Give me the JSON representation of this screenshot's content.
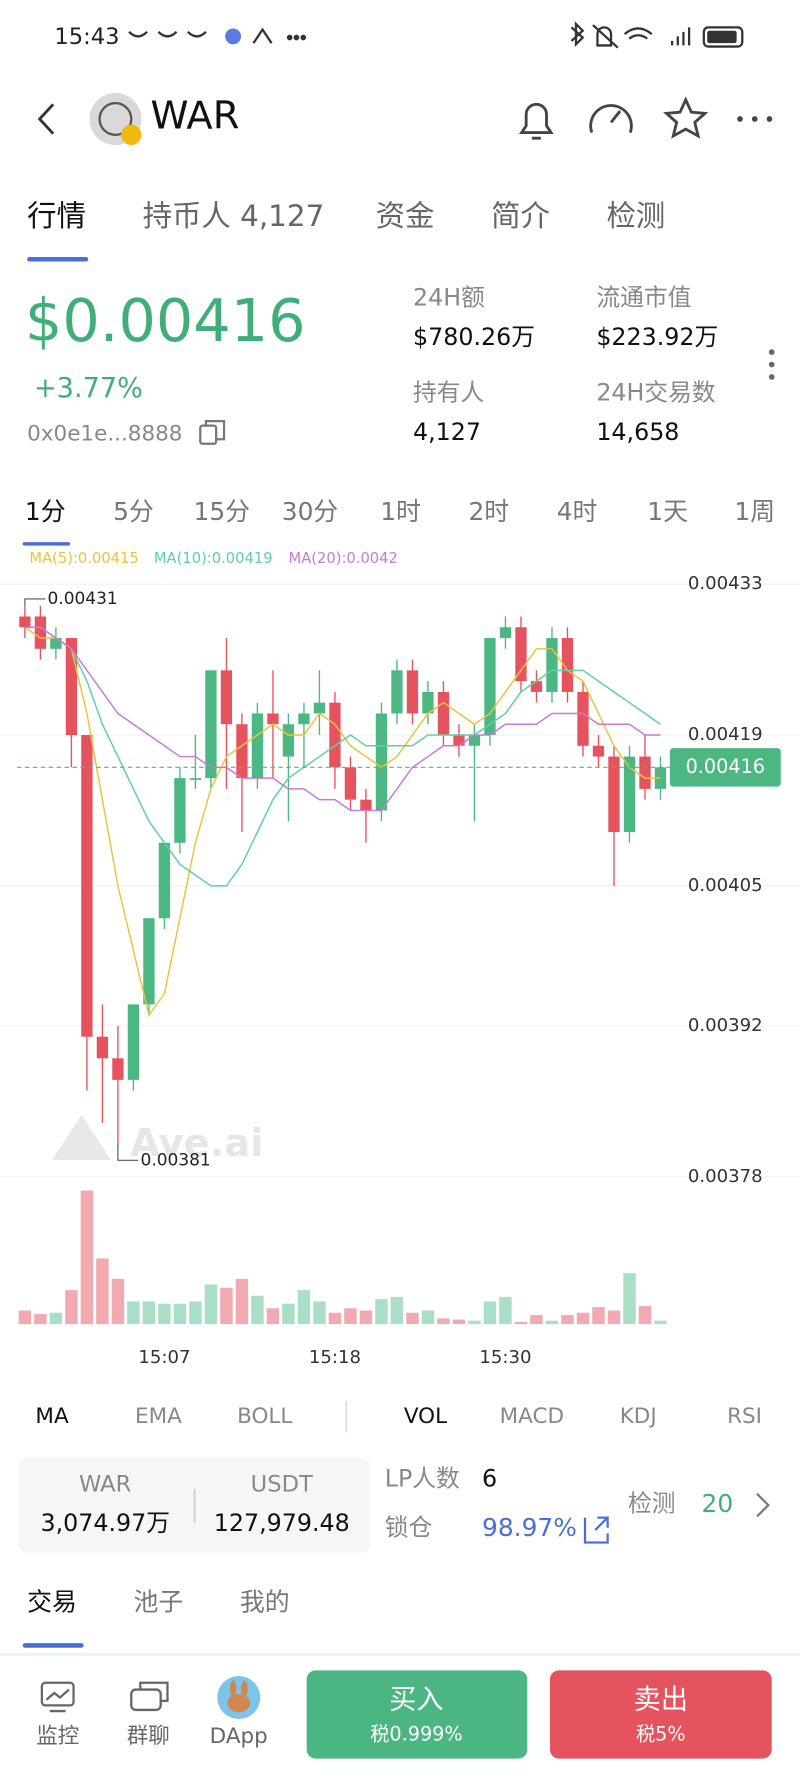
{
  "status_bar": {
    "time": "15:43"
  },
  "header": {
    "title": "WAR"
  },
  "tabs": [
    "行情",
    "持币人 4,127",
    "资金",
    "简介",
    "检测"
  ],
  "price": {
    "value": "$0.00416",
    "change": "+3.77%",
    "address": "0x0e1e...8888"
  },
  "stats": [
    {
      "label": "24H额",
      "value": "$780.26万"
    },
    {
      "label": "流通市值",
      "value": "$223.92万"
    },
    {
      "label": "持有人",
      "value": "4,127"
    },
    {
      "label": "24H交易数",
      "value": "14,658"
    }
  ],
  "intervals": [
    "1分",
    "5分",
    "15分",
    "30分",
    "1时",
    "2时",
    "4时",
    "1天",
    "1周"
  ],
  "chart_data": {
    "type": "candlestick",
    "categories": [
      null,
      null,
      null,
      null,
      null,
      null,
      null,
      null,
      null,
      "15:07",
      null,
      null,
      null,
      null,
      null,
      null,
      null,
      null,
      null,
      null,
      "15:18",
      null,
      null,
      null,
      null,
      null,
      null,
      null,
      null,
      null,
      null,
      "15:30",
      null,
      null,
      null,
      null,
      null,
      null,
      null,
      null,
      null,
      null
    ],
    "open": [
      0.0043,
      0.0043,
      0.00427,
      0.00428,
      0.00419,
      0.00391,
      0.00389,
      0.00387,
      0.00394,
      0.00402,
      0.00409,
      0.00415,
      0.00415,
      0.00425,
      0.0042,
      0.00415,
      0.00421,
      0.00417,
      0.0042,
      0.00421,
      0.00422,
      0.00416,
      0.00413,
      0.00412,
      0.00421,
      0.00425,
      0.00421,
      0.00423,
      0.00419,
      0.00418,
      0.00419,
      0.00428,
      0.00429,
      0.00424,
      0.00423,
      0.00428,
      0.00423,
      0.00418,
      0.00417,
      0.0041,
      0.00417,
      0.00414
    ],
    "high": [
      0.00431,
      0.00431,
      0.00429,
      0.00428,
      0.00419,
      0.00394,
      0.00392,
      0.00394,
      0.00402,
      0.00409,
      0.00416,
      0.00419,
      0.00425,
      0.00428,
      0.00421,
      0.00422,
      0.00425,
      0.00421,
      0.00422,
      0.00425,
      0.00423,
      0.00417,
      0.00414,
      0.00422,
      0.00426,
      0.00426,
      0.00424,
      0.00424,
      0.0042,
      0.0042,
      0.00428,
      0.0043,
      0.0043,
      0.00425,
      0.00429,
      0.00429,
      0.00424,
      0.00419,
      0.00418,
      0.00418,
      0.00419,
      0.00417
    ],
    "low": [
      0.00428,
      0.00426,
      0.00426,
      0.00416,
      0.00386,
      0.00383,
      0.00381,
      0.00386,
      0.00393,
      0.00401,
      0.00408,
      0.00414,
      0.00414,
      0.00414,
      0.0041,
      0.00414,
      0.00415,
      0.00411,
      0.00416,
      0.00419,
      0.00414,
      0.00412,
      0.00409,
      0.00411,
      0.0042,
      0.0042,
      0.0042,
      0.00418,
      0.00417,
      0.00411,
      0.00418,
      0.00427,
      0.00423,
      0.00422,
      0.00422,
      0.00422,
      0.00417,
      0.00416,
      0.00405,
      0.00409,
      0.00413,
      0.00413
    ],
    "close": [
      0.00429,
      0.00427,
      0.00428,
      0.00419,
      0.00391,
      0.00389,
      0.00387,
      0.00394,
      0.00402,
      0.00409,
      0.00415,
      0.00415,
      0.00425,
      0.0042,
      0.00415,
      0.00421,
      0.0042,
      0.0042,
      0.00421,
      0.00422,
      0.00416,
      0.00413,
      0.00412,
      0.00421,
      0.00425,
      0.00421,
      0.00423,
      0.00419,
      0.00418,
      0.00419,
      0.00428,
      0.00429,
      0.00424,
      0.00423,
      0.00428,
      0.00423,
      0.00418,
      0.00417,
      0.0041,
      0.00417,
      0.00414,
      0.00416
    ],
    "volume": [
      12,
      9,
      10,
      30,
      118,
      58,
      40,
      20,
      20,
      18,
      18,
      20,
      35,
      32,
      40,
      25,
      14,
      18,
      30,
      20,
      10,
      14,
      12,
      22,
      24,
      10,
      12,
      5,
      4,
      3,
      20,
      24,
      2,
      8,
      3,
      8,
      10,
      15,
      12,
      45,
      16,
      3
    ],
    "series": [
      {
        "name": "MA(5):0.00415",
        "color": "#e8c43c",
        "values": [
          0.00429,
          0.00428,
          0.00428,
          0.00427,
          0.00421,
          0.00413,
          0.00405,
          0.00399,
          0.00393,
          0.00395,
          0.00402,
          0.00409,
          0.00414,
          0.00417,
          0.00418,
          0.00419,
          0.0042,
          0.00419,
          0.00419,
          0.00421,
          0.0042,
          0.00418,
          0.00417,
          0.00416,
          0.00417,
          0.00419,
          0.00421,
          0.00422,
          0.00421,
          0.0042,
          0.00421,
          0.00423,
          0.00425,
          0.00427,
          0.00427,
          0.00425,
          0.00424,
          0.00421,
          0.00418,
          0.00416,
          0.00415,
          0.00415
        ]
      },
      {
        "name": "MA(10):0.00419",
        "color": "#5fcfa6",
        "values": [
          0.00429,
          0.00429,
          0.00428,
          0.00427,
          0.00424,
          0.0042,
          0.00417,
          0.00414,
          0.00411,
          0.00409,
          0.00407,
          0.00406,
          0.00405,
          0.00405,
          0.00407,
          0.0041,
          0.00413,
          0.00415,
          0.00416,
          0.00417,
          0.00418,
          0.00419,
          0.00418,
          0.00418,
          0.00418,
          0.00418,
          0.00419,
          0.00419,
          0.00419,
          0.00419,
          0.0042,
          0.00421,
          0.00423,
          0.00424,
          0.00425,
          0.00425,
          0.00425,
          0.00424,
          0.00423,
          0.00422,
          0.00421,
          0.0042
        ]
      },
      {
        "name": "MA(20):0.0042",
        "color": "#c77ad6",
        "values": [
          0.00429,
          0.00429,
          0.00428,
          0.00427,
          0.00425,
          0.00423,
          0.00421,
          0.0042,
          0.00419,
          0.00418,
          0.00417,
          0.00417,
          0.00416,
          0.00416,
          0.00415,
          0.00415,
          0.00415,
          0.00414,
          0.00414,
          0.00413,
          0.00413,
          0.00412,
          0.00412,
          0.00412,
          0.00414,
          0.00416,
          0.00417,
          0.00418,
          0.00418,
          0.00419,
          0.00419,
          0.0042,
          0.0042,
          0.0042,
          0.00421,
          0.00421,
          0.00421,
          0.0042,
          0.0042,
          0.0042,
          0.00419,
          0.00419
        ]
      }
    ],
    "up_color": "#4cb782",
    "down_color": "#e5535f",
    "ylim": [
      0.00372,
      0.00437
    ],
    "yticks": [
      0.00433,
      0.00419,
      0.00405,
      0.00392,
      0.00378
    ],
    "grid": true,
    "last_price": 0.00416,
    "max_label": 0.00431,
    "min_label": 0.00381,
    "watermark": "Ave.ai"
  },
  "indicators": {
    "main": [
      "MA",
      "EMA",
      "BOLL"
    ],
    "sub": [
      "VOL",
      "MACD",
      "KDJ",
      "RSI"
    ]
  },
  "pool": {
    "token_a": {
      "name": "WAR",
      "amount": "3,074.97万"
    },
    "token_b": {
      "name": "USDT",
      "amount": "127,979.48"
    },
    "lp_label": "LP人数",
    "lp_count": "6",
    "lock_label": "锁仓",
    "lock_value": "98.97%",
    "check_label": "检测",
    "check_value": "20"
  },
  "bottom_tabs": [
    "交易",
    "池子",
    "我的"
  ],
  "nav": {
    "items": [
      "监控",
      "群聊",
      "DApp"
    ],
    "buy": {
      "label": "买入",
      "tax": "税0.999%"
    },
    "sell": {
      "label": "卖出",
      "tax": "税5%"
    }
  }
}
